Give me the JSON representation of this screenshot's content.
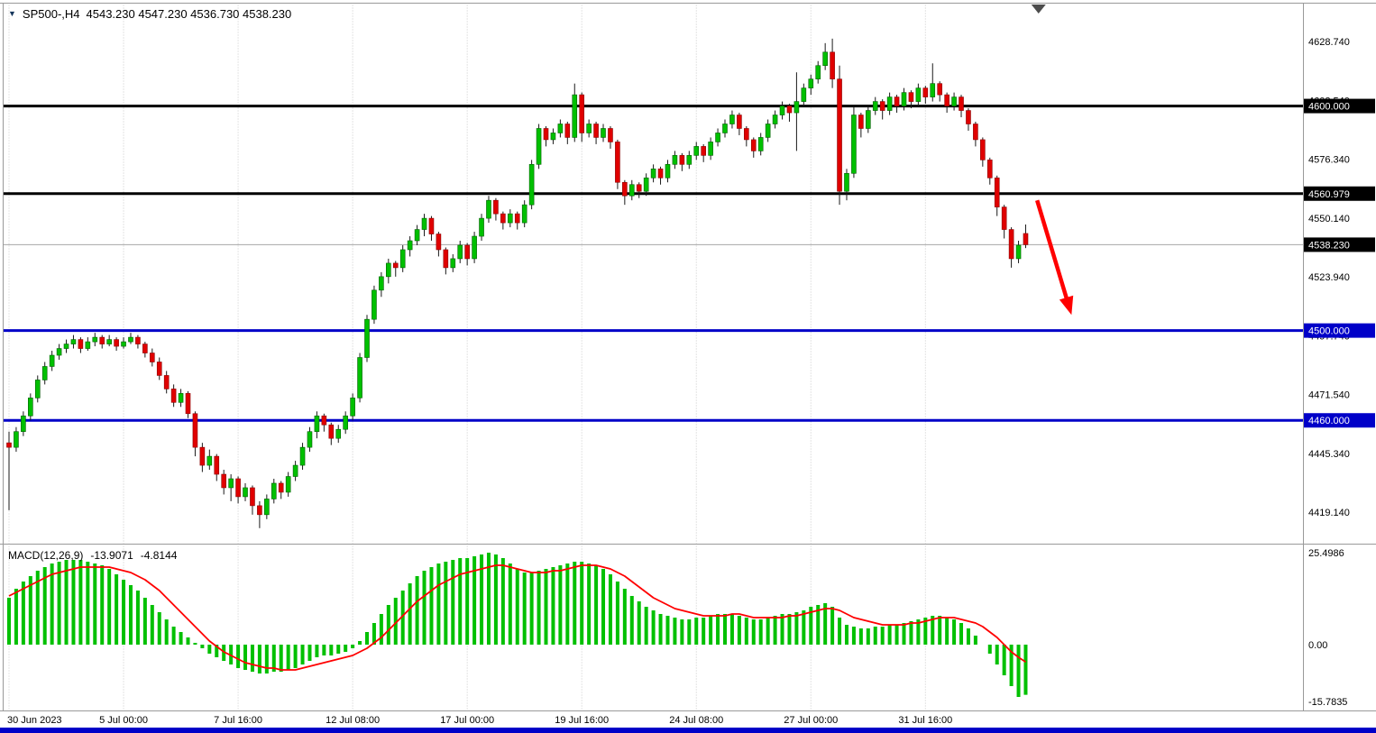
{
  "header": {
    "marker": "▼",
    "title": "SP500-,H4",
    "ohlc": "4543.230 4547.230 4536.730 4538.230"
  },
  "colors": {
    "bull": "#00c000",
    "bull_border": "#005f00",
    "bear": "#e00000",
    "bear_border": "#8b0000",
    "wick": "#1a1a1a",
    "grid": "#c9c9c9",
    "border": "#9a9a9a",
    "histogram": "#00c000",
    "signal_line": "#ff0000",
    "axis_text": "#000000",
    "badge_text": "#ffffff",
    "current_price_line": "#a6a6a6",
    "marker_icon": "#4d4d4d",
    "bottom_bar": "#0000c8",
    "level_black": "#000000",
    "level_blue": "#0000c8",
    "arrow": "#ff0000"
  },
  "chart_data": {
    "type": "candlestick+macd",
    "symbol": "SP500-",
    "timeframe": "H4",
    "current": {
      "open": 4543.23,
      "high": 4547.23,
      "low": 4536.73,
      "close": 4538.23,
      "label": "4538.230",
      "badge_color": "#000000"
    },
    "levels": [
      {
        "price": 4600.0,
        "label": "4600.000",
        "color": "#000000"
      },
      {
        "price": 4560.979,
        "label": "4560.979",
        "color": "#000000"
      },
      {
        "price": 4500.0,
        "label": "4500.000",
        "color": "#0000c8"
      },
      {
        "price": 4460.0,
        "label": "4460.000",
        "color": "#0000c8"
      }
    ],
    "price_axis": {
      "labels": [
        4628.74,
        4602.54,
        4576.34,
        4550.14,
        4523.94,
        4497.74,
        4471.54,
        4445.34,
        4419.14
      ]
    },
    "time_axis": {
      "labels": [
        "30 Jun 2023",
        "5 Jul 00:00",
        "7 Jul 16:00",
        "12 Jul 08:00",
        "17 Jul 00:00",
        "19 Jul 16:00",
        "24 Jul 08:00",
        "27 Jul 00:00",
        "31 Jul 16:00"
      ],
      "bar_indices": [
        0,
        16,
        32,
        48,
        64,
        80,
        96,
        112,
        128
      ]
    },
    "candles": [
      [
        4450,
        4455,
        4420,
        4448
      ],
      [
        4448,
        4457,
        4446,
        4455
      ],
      [
        4455,
        4464,
        4453,
        4462
      ],
      [
        4462,
        4472,
        4460,
        4470
      ],
      [
        4470,
        4480,
        4468,
        4478
      ],
      [
        4478,
        4486,
        4476,
        4484
      ],
      [
        4484,
        4491,
        4482,
        4489
      ],
      [
        4489,
        4494,
        4487,
        4492
      ],
      [
        4492,
        4496,
        4490,
        4494
      ],
      [
        4494,
        4498,
        4492,
        4496
      ],
      [
        4496,
        4497,
        4490,
        4492
      ],
      [
        4492,
        4497,
        4491,
        4495
      ],
      [
        4495,
        4499,
        4493,
        4497
      ],
      [
        4497,
        4498,
        4492,
        4494
      ],
      [
        4494,
        4498,
        4493,
        4496
      ],
      [
        4496,
        4497,
        4491,
        4493
      ],
      [
        4493,
        4497,
        4492,
        4495
      ],
      [
        4495,
        4499,
        4494,
        4497
      ],
      [
        4497,
        4498,
        4492,
        4494
      ],
      [
        4494,
        4495,
        4488,
        4490
      ],
      [
        4490,
        4492,
        4484,
        4486
      ],
      [
        4486,
        4488,
        4478,
        4480
      ],
      [
        4480,
        4482,
        4472,
        4474
      ],
      [
        4474,
        4476,
        4466,
        4468
      ],
      [
        4468,
        4474,
        4466,
        4472
      ],
      [
        4472,
        4473,
        4461,
        4463
      ],
      [
        4463,
        4464,
        4444,
        4448
      ],
      [
        4448,
        4450,
        4437,
        4440
      ],
      [
        4440,
        4447,
        4438,
        4444
      ],
      [
        4444,
        4445,
        4433,
        4436
      ],
      [
        4436,
        4438,
        4427,
        4430
      ],
      [
        4430,
        4436,
        4424,
        4434
      ],
      [
        4434,
        4435,
        4423,
        4426
      ],
      [
        4426,
        4432,
        4424,
        4430
      ],
      [
        4430,
        4431,
        4418,
        4422
      ],
      [
        4422,
        4424,
        4412,
        4418
      ],
      [
        4418,
        4427,
        4416,
        4425
      ],
      [
        4425,
        4434,
        4423,
        4432
      ],
      [
        4432,
        4433,
        4425,
        4428
      ],
      [
        4428,
        4437,
        4426,
        4435
      ],
      [
        4435,
        4442,
        4433,
        4440
      ],
      [
        4440,
        4450,
        4438,
        4448
      ],
      [
        4448,
        4457,
        4446,
        4455
      ],
      [
        4455,
        4464,
        4452,
        4462
      ],
      [
        4462,
        4463,
        4455,
        4458
      ],
      [
        4458,
        4459,
        4449,
        4452
      ],
      [
        4452,
        4458,
        4450,
        4456
      ],
      [
        4456,
        4464,
        4454,
        4462
      ],
      [
        4462,
        4472,
        4460,
        4470
      ],
      [
        4470,
        4490,
        4468,
        4488
      ],
      [
        4488,
        4507,
        4486,
        4505
      ],
      [
        4505,
        4520,
        4503,
        4518
      ],
      [
        4518,
        4526,
        4515,
        4524
      ],
      [
        4524,
        4532,
        4521,
        4530
      ],
      [
        4530,
        4531,
        4524,
        4528
      ],
      [
        4528,
        4538,
        4526,
        4536
      ],
      [
        4536,
        4542,
        4533,
        4540
      ],
      [
        4540,
        4547,
        4538,
        4545
      ],
      [
        4545,
        4552,
        4542,
        4550
      ],
      [
        4550,
        4551,
        4540,
        4543
      ],
      [
        4543,
        4544,
        4533,
        4536
      ],
      [
        4536,
        4537,
        4525,
        4528
      ],
      [
        4528,
        4534,
        4526,
        4532
      ],
      [
        4532,
        4540,
        4530,
        4538
      ],
      [
        4538,
        4539,
        4529,
        4532
      ],
      [
        4532,
        4544,
        4530,
        4542
      ],
      [
        4542,
        4552,
        4540,
        4550
      ],
      [
        4550,
        4560,
        4548,
        4558
      ],
      [
        4558,
        4559,
        4549,
        4552
      ],
      [
        4552,
        4553,
        4545,
        4548
      ],
      [
        4548,
        4554,
        4546,
        4552
      ],
      [
        4552,
        4553,
        4545,
        4548
      ],
      [
        4548,
        4558,
        4546,
        4556
      ],
      [
        4556,
        4576,
        4554,
        4574
      ],
      [
        4574,
        4592,
        4572,
        4590
      ],
      [
        4590,
        4591,
        4582,
        4585
      ],
      [
        4585,
        4590,
        4583,
        4588
      ],
      [
        4588,
        4594,
        4586,
        4592
      ],
      [
        4592,
        4593,
        4583,
        4586
      ],
      [
        4586,
        4610,
        4584,
        4605
      ],
      [
        4605,
        4606,
        4584,
        4588
      ],
      [
        4588,
        4594,
        4586,
        4592
      ],
      [
        4592,
        4593,
        4583,
        4586
      ],
      [
        4586,
        4592,
        4584,
        4590
      ],
      [
        4590,
        4591,
        4581,
        4584
      ],
      [
        4584,
        4585,
        4563,
        4566
      ],
      [
        4566,
        4567,
        4556,
        4560
      ],
      [
        4560,
        4567,
        4558,
        4565
      ],
      [
        4565,
        4566,
        4559,
        4562
      ],
      [
        4562,
        4570,
        4560,
        4568
      ],
      [
        4568,
        4574,
        4566,
        4572
      ],
      [
        4572,
        4573,
        4565,
        4568
      ],
      [
        4568,
        4576,
        4566,
        4574
      ],
      [
        4574,
        4580,
        4572,
        4578
      ],
      [
        4578,
        4579,
        4571,
        4574
      ],
      [
        4574,
        4580,
        4572,
        4578
      ],
      [
        4578,
        4584,
        4576,
        4582
      ],
      [
        4582,
        4583,
        4575,
        4578
      ],
      [
        4578,
        4586,
        4576,
        4584
      ],
      [
        4584,
        4590,
        4582,
        4588
      ],
      [
        4588,
        4594,
        4586,
        4592
      ],
      [
        4592,
        4598,
        4590,
        4596
      ],
      [
        4596,
        4597,
        4587,
        4590
      ],
      [
        4590,
        4591,
        4582,
        4585
      ],
      [
        4585,
        4586,
        4577,
        4580
      ],
      [
        4580,
        4588,
        4578,
        4586
      ],
      [
        4586,
        4594,
        4584,
        4592
      ],
      [
        4592,
        4598,
        4590,
        4596
      ],
      [
        4596,
        4602,
        4594,
        4600
      ],
      [
        4600,
        4601,
        4593,
        4597
      ],
      [
        4597,
        4615,
        4580,
        4602
      ],
      [
        4602,
        4610,
        4600,
        4608
      ],
      [
        4608,
        4614,
        4605,
        4612
      ],
      [
        4612,
        4620,
        4610,
        4618
      ],
      [
        4618,
        4628,
        4616,
        4624
      ],
      [
        4624,
        4630,
        4608,
        4612
      ],
      [
        4612,
        4618,
        4556,
        4562
      ],
      [
        4562,
        4572,
        4558,
        4570
      ],
      [
        4570,
        4600,
        4568,
        4596
      ],
      [
        4596,
        4597,
        4586,
        4590
      ],
      [
        4590,
        4600,
        4588,
        4598
      ],
      [
        4598,
        4604,
        4596,
        4602
      ],
      [
        4602,
        4603,
        4594,
        4598
      ],
      [
        4598,
        4606,
        4596,
        4604
      ],
      [
        4604,
        4605,
        4597,
        4600
      ],
      [
        4600,
        4608,
        4598,
        4606
      ],
      [
        4606,
        4607,
        4599,
        4602
      ],
      [
        4602,
        4610,
        4600,
        4608
      ],
      [
        4608,
        4609,
        4601,
        4604
      ],
      [
        4604,
        4619,
        4602,
        4610
      ],
      [
        4610,
        4611,
        4602,
        4605
      ],
      [
        4605,
        4606,
        4597,
        4600
      ],
      [
        4600,
        4606,
        4598,
        4604
      ],
      [
        4604,
        4605,
        4595,
        4598
      ],
      [
        4598,
        4599,
        4589,
        4592
      ],
      [
        4592,
        4593,
        4582,
        4585
      ],
      [
        4585,
        4586,
        4573,
        4576
      ],
      [
        4576,
        4577,
        4565,
        4568
      ],
      [
        4568,
        4569,
        4551,
        4555
      ],
      [
        4555,
        4556,
        4541,
        4545
      ],
      [
        4545,
        4546,
        4528,
        4532
      ],
      [
        4532,
        4540,
        4530,
        4538
      ],
      [
        4543.23,
        4547.23,
        4536.73,
        4538.23
      ]
    ],
    "macd": {
      "indicator_label": "MACD(12,26,9)",
      "main_value": "-13.9071",
      "signal_value": "-4.8144",
      "axis_labels": [
        "25.4986",
        "0.00",
        "-15.7835"
      ],
      "axis_values": [
        25.4986,
        0,
        -15.7835
      ],
      "histogram": [
        13,
        15.5,
        17.5,
        19,
        20.5,
        21.5,
        22.5,
        23,
        23.5,
        23.5,
        23.5,
        23,
        22.5,
        22,
        21,
        19.5,
        18,
        16.5,
        15,
        13,
        11,
        9,
        7,
        5,
        3.5,
        2,
        0.5,
        -1,
        -2.5,
        -3.5,
        -4.5,
        -5.5,
        -6.5,
        -7,
        -7.5,
        -8,
        -8,
        -7.5,
        -7.5,
        -7,
        -6.5,
        -5.5,
        -4.5,
        -3.5,
        -3,
        -3,
        -2.5,
        -2,
        -1,
        1,
        3.5,
        6,
        8.5,
        11,
        13,
        15,
        17,
        19,
        20.5,
        21.5,
        22.5,
        23,
        23.5,
        24,
        24,
        24.5,
        25,
        25.5,
        25,
        24,
        22.5,
        21,
        20,
        20,
        20.5,
        21,
        21.5,
        22,
        22.5,
        23,
        23,
        22.5,
        22,
        21,
        19.5,
        17.5,
        15.5,
        13.5,
        12,
        10.5,
        9.5,
        8.5,
        8,
        7.5,
        7,
        7,
        7.5,
        7.5,
        8,
        8.5,
        8.5,
        8.5,
        8,
        7.5,
        7,
        7,
        7.5,
        8,
        8.5,
        8.5,
        9,
        9.5,
        10.5,
        11,
        11.5,
        10.5,
        7.5,
        5.5,
        5,
        4.5,
        4.5,
        5,
        5,
        5.5,
        5.5,
        6,
        6.5,
        7,
        7.5,
        8,
        8,
        7.5,
        7,
        6,
        4.5,
        2.5,
        0,
        -2.5,
        -5.5,
        -8.5,
        -11.5,
        -14.5,
        -13.9071
      ],
      "signal": [
        13.5,
        14.5,
        15.5,
        16.5,
        17.5,
        18.5,
        19.5,
        20,
        20.5,
        21,
        21.5,
        21.5,
        21.5,
        21.5,
        21.5,
        21,
        20.5,
        20,
        19,
        18,
        16.5,
        15,
        13,
        11,
        9,
        7,
        5,
        3,
        1,
        -0.5,
        -2,
        -3,
        -4,
        -5,
        -5.5,
        -6,
        -6.5,
        -6.5,
        -7,
        -7,
        -7,
        -6.5,
        -6,
        -5.5,
        -5,
        -4.5,
        -4,
        -3.5,
        -3,
        -2,
        -1,
        0.5,
        2,
        4,
        6,
        8,
        10,
        12,
        13.5,
        15,
        16.5,
        17.5,
        18.5,
        19.5,
        20,
        20.5,
        21,
        21.5,
        22,
        22,
        21.5,
        21,
        20.5,
        20,
        20,
        20,
        20.5,
        20.5,
        21,
        21.5,
        22,
        22,
        22,
        21.5,
        21,
        20,
        19,
        17.5,
        16,
        14.5,
        13,
        12,
        11,
        10,
        9.5,
        9,
        8.5,
        8,
        8,
        8,
        8,
        8.5,
        8.5,
        8,
        7.5,
        7.5,
        7.5,
        7.5,
        7.5,
        8,
        8,
        8.5,
        9,
        9.5,
        10,
        10,
        9.5,
        8.5,
        7.5,
        7,
        6.5,
        6,
        5.5,
        5.5,
        5.5,
        5.5,
        6,
        6,
        6.5,
        7,
        7.5,
        7.5,
        7.5,
        7,
        6.5,
        6,
        5,
        3.5,
        2,
        0,
        -2,
        -3.5,
        -4.8144
      ]
    },
    "annotations": {
      "arrow": {
        "from_bar": 143.6,
        "from_price": 4558,
        "to_bar": 148.4,
        "to_price": 4507,
        "color": "#ff0000"
      },
      "shift_marker_bar": 143.8
    }
  }
}
